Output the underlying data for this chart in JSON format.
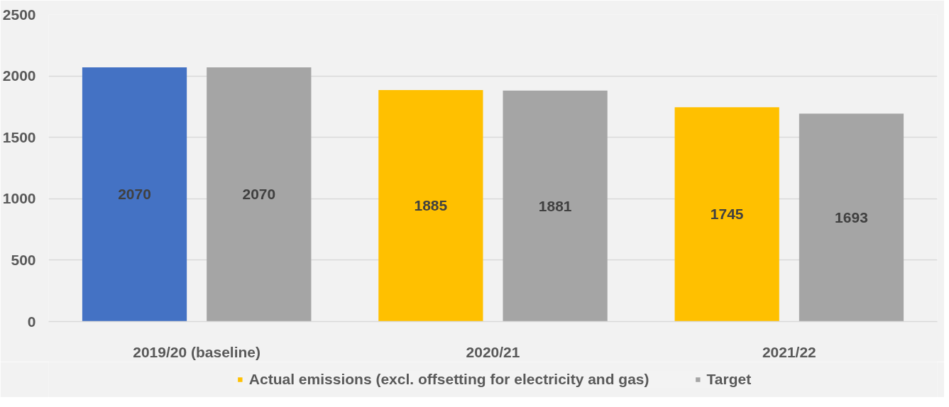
{
  "chart_data": {
    "type": "bar",
    "categories": [
      "2019/20 (baseline)",
      "2020/21",
      "2021/22"
    ],
    "series": [
      {
        "name": "Actual emissions (excl. offsetting for electricity and gas)",
        "color": "#ffc000",
        "colors": [
          "#4472c4",
          "#ffc000",
          "#ffc000"
        ],
        "values": [
          2070,
          1885,
          1745
        ]
      },
      {
        "name": "Target",
        "color": "#a5a5a5",
        "values": [
          2070,
          1881,
          1693
        ]
      }
    ],
    "ylim": [
      0,
      2500
    ],
    "yticks": [
      0,
      500,
      1000,
      1500,
      2000,
      2500
    ],
    "grid": "y",
    "legend": "bottom",
    "data_labels": true
  }
}
